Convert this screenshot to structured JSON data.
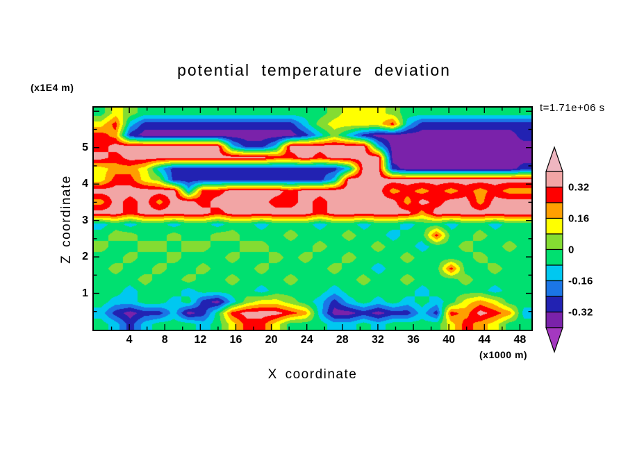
{
  "chart_data": {
    "type": "heatmap",
    "subtype": "filled-contour",
    "title": "potential temperature deviation",
    "xlabel": "X coordinate",
    "ylabel": "Z coordinate",
    "x_unit": "(x1000 m)",
    "y_unit": "(x1E4 m)",
    "time_annotation": "t=1.71e+06 s",
    "x_range": [
      0,
      49.3
    ],
    "y_range": [
      0,
      6.1
    ],
    "x_ticks": [
      4,
      8,
      12,
      16,
      20,
      24,
      28,
      32,
      36,
      40,
      44,
      48
    ],
    "y_ticks": [
      1,
      2,
      3,
      4,
      5
    ],
    "x_minor_step": 2,
    "y_minor_step": 0.5,
    "grid": false,
    "colorbar_position": "right",
    "colorbar": {
      "tick_labels": [
        "0.32",
        "0.16",
        "0",
        "-0.16",
        "-0.32"
      ],
      "tick_values": [
        0.32,
        0.16,
        0,
        -0.16,
        -0.32
      ],
      "levels": [
        -0.4,
        -0.32,
        -0.24,
        -0.16,
        -0.08,
        0,
        0.08,
        0.16,
        0.24,
        0.32,
        0.4
      ],
      "colors": [
        "#a438c0",
        "#7a22aa",
        "#2222b2",
        "#1b76e6",
        "#00c8f0",
        "#00e070",
        "#84dc32",
        "#ffff00",
        "#ff9f00",
        "#ff0000",
        "#f2a5a5",
        "#efb6c0"
      ]
    },
    "field_note": "approximate potential temperature deviation values on a 20 (z, top to bottom) x 30 (x) grid, read from the contour fill colors",
    "field": [
      [
        -0.04,
        0.12,
        0.04,
        -0.04,
        -0.04,
        -0.04,
        -0.04,
        -0.04,
        -0.04,
        -0.04,
        -0.04,
        -0.04,
        -0.04,
        -0.04,
        -0.04,
        -0.04,
        0.04,
        0.12,
        0.12,
        0.12,
        0.04,
        -0.04,
        -0.04,
        -0.04,
        -0.04,
        -0.04,
        -0.04,
        -0.04,
        -0.04,
        -0.04
      ],
      [
        0.12,
        0.28,
        -0.12,
        -0.28,
        -0.28,
        -0.28,
        -0.28,
        -0.28,
        -0.28,
        -0.28,
        -0.28,
        -0.28,
        -0.28,
        -0.28,
        -0.12,
        0.04,
        0.12,
        0.12,
        0.12,
        0.12,
        0.28,
        -0.12,
        -0.28,
        -0.28,
        -0.28,
        -0.28,
        -0.28,
        -0.28,
        -0.28,
        -0.28
      ],
      [
        0.28,
        0.2,
        -0.28,
        -0.36,
        -0.36,
        -0.36,
        -0.36,
        -0.36,
        -0.36,
        -0.36,
        -0.36,
        -0.36,
        -0.36,
        -0.36,
        -0.28,
        -0.12,
        0.04,
        -0.12,
        -0.28,
        -0.36,
        -0.36,
        -0.36,
        -0.36,
        -0.36,
        -0.36,
        -0.36,
        -0.36,
        -0.36,
        -0.36,
        -0.28
      ],
      [
        0.28,
        0.36,
        0.36,
        0.36,
        0.36,
        0.36,
        0.36,
        0.36,
        0.36,
        -0.12,
        -0.28,
        -0.28,
        -0.12,
        0.36,
        0.36,
        0.36,
        0.36,
        0.36,
        0.36,
        -0.12,
        -0.36,
        -0.36,
        -0.36,
        -0.36,
        -0.36,
        -0.36,
        -0.36,
        -0.36,
        -0.36,
        -0.36
      ],
      [
        0.36,
        0.28,
        0.36,
        0.36,
        0.36,
        0.36,
        0.36,
        0.36,
        0.36,
        0.36,
        0.36,
        0.36,
        0.28,
        0.28,
        0.36,
        0.28,
        0.36,
        0.36,
        0.36,
        0.36,
        -0.36,
        -0.36,
        -0.36,
        -0.36,
        -0.36,
        -0.36,
        -0.36,
        -0.36,
        -0.36,
        -0.36
      ],
      [
        0.12,
        0.2,
        0.2,
        0.12,
        -0.12,
        -0.28,
        -0.28,
        -0.28,
        -0.28,
        -0.28,
        -0.28,
        -0.28,
        -0.28,
        -0.28,
        -0.28,
        -0.28,
        -0.28,
        -0.12,
        0.36,
        0.36,
        -0.28,
        -0.36,
        -0.36,
        -0.36,
        -0.36,
        -0.36,
        -0.36,
        -0.36,
        -0.36,
        -0.28
      ],
      [
        0.12,
        0.28,
        0.28,
        0.12,
        0.04,
        -0.28,
        -0.28,
        -0.28,
        -0.28,
        -0.28,
        -0.28,
        -0.28,
        -0.28,
        -0.28,
        -0.28,
        -0.28,
        -0.12,
        0.36,
        0.36,
        0.36,
        0.36,
        0.36,
        0.36,
        0.36,
        0.36,
        0.36,
        0.36,
        0.36,
        0.36,
        0.36
      ],
      [
        0.36,
        0.36,
        0.36,
        0.36,
        0.36,
        0.36,
        -0.12,
        0.28,
        0.28,
        0.36,
        0.36,
        0.36,
        0.36,
        0.28,
        0.36,
        0.36,
        0.36,
        0.36,
        0.36,
        0.36,
        0.2,
        0.28,
        0.2,
        0.28,
        0.2,
        0.28,
        0.2,
        0.28,
        0.2,
        0.2
      ],
      [
        0.2,
        0.36,
        0.28,
        0.36,
        0.2,
        0.36,
        0.36,
        0.28,
        0.36,
        0.36,
        0.36,
        0.36,
        0.28,
        0.28,
        0.36,
        0.28,
        0.36,
        0.36,
        0.36,
        0.36,
        0.36,
        0.2,
        0.36,
        0.28,
        0.36,
        0.36,
        0.2,
        0.36,
        0.36,
        0.36
      ],
      [
        0.36,
        0.36,
        0.28,
        0.36,
        0.36,
        0.36,
        0.36,
        0.36,
        0.28,
        0.36,
        0.36,
        0.36,
        0.36,
        0.36,
        0.36,
        0.28,
        0.36,
        0.36,
        0.36,
        0.36,
        0.36,
        0.36,
        0.2,
        0.36,
        0.36,
        0.36,
        0.36,
        0.36,
        0.36,
        0.36
      ],
      [
        -0.12,
        -0.04,
        -0.12,
        -0.04,
        -0.04,
        -0.12,
        -0.04,
        -0.04,
        -0.12,
        -0.04,
        -0.04,
        -0.12,
        -0.04,
        -0.04,
        -0.04,
        -0.12,
        -0.04,
        -0.04,
        -0.12,
        -0.04,
        -0.04,
        -0.12,
        -0.04,
        -0.04,
        -0.12,
        -0.04,
        -0.04,
        -0.12,
        -0.04,
        -0.04
      ],
      [
        -0.04,
        0.04,
        0.04,
        -0.04,
        -0.04,
        0.04,
        -0.04,
        -0.04,
        0.04,
        0.04,
        -0.04,
        -0.04,
        -0.04,
        0.04,
        -0.04,
        -0.04,
        -0.04,
        0.04,
        -0.04,
        -0.04,
        -0.12,
        -0.04,
        -0.04,
        0.28,
        -0.04,
        -0.04,
        0.04,
        -0.04,
        -0.04,
        -0.04
      ],
      [
        0.04,
        -0.04,
        -0.04,
        0.04,
        0.04,
        -0.04,
        0.04,
        0.04,
        -0.04,
        -0.04,
        0.04,
        0.04,
        -0.04,
        -0.04,
        -0.04,
        0.04,
        -0.04,
        -0.04,
        -0.04,
        0.04,
        -0.04,
        -0.04,
        -0.12,
        -0.04,
        -0.04,
        0.04,
        -0.04,
        -0.04,
        0.04,
        -0.04
      ],
      [
        -0.04,
        -0.04,
        0.04,
        -0.04,
        -0.04,
        0.04,
        -0.04,
        -0.04,
        -0.04,
        0.04,
        -0.04,
        -0.04,
        0.04,
        -0.04,
        0.04,
        -0.04,
        -0.04,
        0.04,
        -0.04,
        -0.04,
        -0.04,
        0.04,
        -0.04,
        -0.04,
        -0.04,
        -0.04,
        0.04,
        -0.04,
        -0.04,
        -0.04
      ],
      [
        -0.04,
        0.04,
        -0.04,
        -0.04,
        0.04,
        -0.04,
        -0.04,
        0.04,
        -0.04,
        -0.04,
        -0.04,
        0.04,
        -0.04,
        -0.04,
        -0.04,
        -0.04,
        0.04,
        -0.04,
        -0.04,
        -0.12,
        -0.04,
        -0.04,
        -0.04,
        -0.04,
        0.28,
        -0.04,
        -0.04,
        0.04,
        -0.04,
        -0.04
      ],
      [
        -0.04,
        -0.04,
        -0.04,
        0.04,
        -0.04,
        -0.04,
        0.04,
        -0.04,
        -0.04,
        0.04,
        -0.04,
        -0.04,
        -0.04,
        0.04,
        -0.04,
        -0.04,
        -0.04,
        -0.04,
        0.04,
        -0.04,
        -0.04,
        0.04,
        -0.04,
        -0.04,
        -0.04,
        0.04,
        -0.04,
        -0.04,
        -0.04,
        -0.04
      ],
      [
        -0.04,
        -0.04,
        -0.12,
        -0.04,
        -0.04,
        -0.04,
        -0.12,
        -0.04,
        -0.04,
        -0.04,
        -0.04,
        -0.12,
        -0.04,
        -0.04,
        -0.04,
        -0.04,
        -0.12,
        -0.04,
        -0.04,
        -0.04,
        -0.04,
        -0.04,
        -0.12,
        -0.04,
        -0.04,
        -0.04,
        -0.04,
        -0.12,
        -0.04,
        -0.04
      ],
      [
        -0.04,
        -0.12,
        -0.12,
        -0.04,
        -0.04,
        -0.12,
        -0.04,
        -0.28,
        -0.36,
        -0.12,
        0.04,
        0.12,
        0.12,
        0.04,
        -0.04,
        -0.12,
        -0.28,
        -0.12,
        -0.04,
        -0.12,
        -0.04,
        -0.12,
        -0.04,
        -0.12,
        -0.04,
        0.12,
        0.2,
        0.12,
        -0.04,
        -0.04
      ],
      [
        -0.12,
        -0.28,
        -0.36,
        -0.28,
        -0.28,
        -0.12,
        -0.36,
        -0.28,
        -0.04,
        0.28,
        0.36,
        0.36,
        0.36,
        0.28,
        0.2,
        -0.12,
        -0.36,
        -0.36,
        -0.28,
        -0.36,
        -0.28,
        -0.28,
        -0.12,
        -0.28,
        0.28,
        0.2,
        0.36,
        0.28,
        0.2,
        -0.12
      ],
      [
        -0.04,
        -0.12,
        -0.28,
        -0.12,
        -0.04,
        -0.04,
        -0.04,
        -0.12,
        -0.04,
        0.12,
        0.28,
        0.28,
        0.12,
        -0.04,
        -0.04,
        -0.04,
        -0.12,
        -0.12,
        -0.04,
        -0.12,
        -0.04,
        -0.04,
        -0.04,
        -0.04,
        0.12,
        0.28,
        0.2,
        0.12,
        -0.04,
        -0.04
      ]
    ]
  }
}
